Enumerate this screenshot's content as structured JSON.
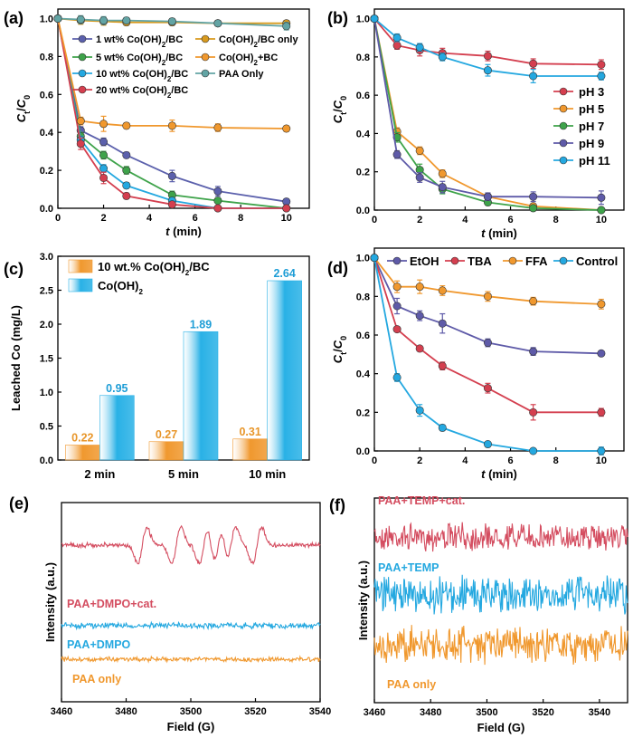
{
  "colors": {
    "blue_purple": "#5b60ac",
    "green": "#3ea34a",
    "cyan": "#24a8e0",
    "red": "#d43f4f",
    "orange": "#f0982e",
    "yellow_orange": "#f2a52e",
    "teal": "#62a4a4",
    "purple": "#5e5aa8",
    "light_blue": "#29b1e6",
    "pink_red": "#d44d60"
  },
  "chart_data": [
    {
      "id": "a",
      "panel_label": "(a)",
      "type": "line",
      "xlabel": "t (min)",
      "ylabel": "Ct/C0",
      "xlim": [
        0,
        11
      ],
      "ylim": [
        0,
        1.05
      ],
      "xticks": [
        0,
        2,
        4,
        6,
        8,
        10
      ],
      "yticks": [
        0.0,
        0.2,
        0.4,
        0.6,
        0.8,
        1.0
      ],
      "series": [
        {
          "name": "1 wt% Co(OH)2/BC",
          "label_main": "1 wt% Co(OH)",
          "label_sub": "2",
          "label_end": "/BC",
          "color": "#5b60ac",
          "x": [
            0,
            1,
            2,
            3,
            5,
            7,
            10
          ],
          "y": [
            1.0,
            0.41,
            0.35,
            0.28,
            0.17,
            0.09,
            0.035
          ],
          "err": [
            0,
            0.02,
            0.02,
            0.015,
            0.03,
            0.025,
            0.015
          ]
        },
        {
          "name": "5 wt% Co(OH)2/BC",
          "label_main": "5 wt% Co(OH)",
          "label_sub": "2",
          "label_end": "/BC",
          "color": "#3ea34a",
          "x": [
            0,
            1,
            2,
            3,
            5,
            7,
            10
          ],
          "y": [
            1.0,
            0.38,
            0.28,
            0.2,
            0.07,
            0.04,
            0.0
          ],
          "err": [
            0,
            0.02,
            0.02,
            0.02,
            0.02,
            0.015,
            0.01
          ]
        },
        {
          "name": "10 wt% Co(OH)2/BC",
          "label_main": "10 wt% Co(OH)",
          "label_sub": "2",
          "label_end": "/BC",
          "color": "#24a8e0",
          "x": [
            0,
            1,
            2,
            3,
            5,
            7,
            10
          ],
          "y": [
            1.0,
            0.36,
            0.21,
            0.12,
            0.04,
            0.0,
            0.0
          ],
          "err": [
            0,
            0.02,
            0.02,
            0.015,
            0.015,
            0.01,
            0.005
          ]
        },
        {
          "name": "20 wt% Co(OH)2/BC",
          "label_main": "20 wt% Co(OH)",
          "label_sub": "2",
          "label_end": "/BC",
          "color": "#d43f4f",
          "x": [
            0,
            1,
            2,
            3,
            5,
            7,
            10
          ],
          "y": [
            1.0,
            0.34,
            0.16,
            0.065,
            0.02,
            0.0,
            0.0
          ],
          "err": [
            0,
            0.03,
            0.03,
            0.015,
            0.01,
            0.005,
            0.005
          ]
        },
        {
          "name": "Co(OH)2/BC only",
          "label_main": "Co(OH)",
          "label_sub": "2",
          "label_end": "/BC only",
          "color": "#d89a1e",
          "x": [
            0,
            1,
            2,
            3,
            5,
            7,
            10
          ],
          "y": [
            1.0,
            0.99,
            0.985,
            0.98,
            0.98,
            0.975,
            0.975
          ],
          "err": [
            0,
            0.02,
            0.02,
            0.015,
            0.015,
            0.015,
            0.015
          ]
        },
        {
          "name": "Co(OH)2+BC",
          "label_main": "Co(OH)",
          "label_sub": "2",
          "label_end": "+BC",
          "color": "#f0982e",
          "x": [
            0,
            1,
            2,
            3,
            5,
            7,
            10
          ],
          "y": [
            1.0,
            0.46,
            0.445,
            0.435,
            0.435,
            0.425,
            0.42
          ],
          "err": [
            0,
            0.02,
            0.04,
            0.015,
            0.03,
            0.02,
            0.015
          ]
        },
        {
          "name": "PAA Only",
          "label_main": "PAA Only",
          "label_sub": "",
          "label_end": "",
          "color": "#62a4a4",
          "x": [
            0,
            1,
            2,
            3,
            5,
            7,
            10
          ],
          "y": [
            1.0,
            0.995,
            0.99,
            0.99,
            0.985,
            0.975,
            0.96
          ],
          "err": [
            0,
            0.02,
            0.02,
            0.015,
            0.015,
            0.015,
            0.02
          ]
        }
      ]
    },
    {
      "id": "b",
      "panel_label": "(b)",
      "type": "line",
      "xlabel": "t (min)",
      "ylabel": "Ct/C0",
      "xlim": [
        0,
        11
      ],
      "ylim": [
        0,
        1.05
      ],
      "xticks": [
        0,
        2,
        4,
        6,
        8,
        10
      ],
      "yticks": [
        0.0,
        0.2,
        0.4,
        0.6,
        0.8,
        1.0
      ],
      "series": [
        {
          "name": "pH 3",
          "color": "#d43f4f",
          "x": [
            0,
            1,
            2,
            3,
            5,
            7,
            10
          ],
          "y": [
            1.0,
            0.86,
            0.835,
            0.82,
            0.805,
            0.765,
            0.76
          ],
          "err": [
            0,
            0.02,
            0.03,
            0.025,
            0.025,
            0.025,
            0.025
          ]
        },
        {
          "name": "pH 5",
          "color": "#f0982e",
          "x": [
            0,
            1,
            2,
            3,
            5,
            7,
            10
          ],
          "y": [
            1.0,
            0.41,
            0.31,
            0.19,
            0.07,
            0.02,
            0.0
          ],
          "err": [
            0,
            0.02,
            0.02,
            0.02,
            0.015,
            0.01,
            0.01
          ]
        },
        {
          "name": "pH 7",
          "color": "#3ea34a",
          "x": [
            0,
            1,
            2,
            3,
            5,
            7,
            10
          ],
          "y": [
            1.0,
            0.38,
            0.21,
            0.11,
            0.04,
            0.01,
            0.0
          ],
          "err": [
            0,
            0.025,
            0.03,
            0.025,
            0.01,
            0.01,
            0.005
          ]
        },
        {
          "name": "pH 9",
          "color": "#5e5aa8",
          "x": [
            0,
            1,
            2,
            3,
            5,
            7,
            10
          ],
          "y": [
            1.0,
            0.29,
            0.17,
            0.12,
            0.07,
            0.07,
            0.065
          ],
          "err": [
            0,
            0.02,
            0.025,
            0.03,
            0.02,
            0.025,
            0.035
          ]
        },
        {
          "name": "pH 11",
          "color": "#24a8e0",
          "x": [
            0,
            1,
            2,
            3,
            5,
            7,
            10
          ],
          "y": [
            1.0,
            0.9,
            0.85,
            0.8,
            0.73,
            0.7,
            0.7
          ],
          "err": [
            0,
            0.02,
            0.02,
            0.02,
            0.03,
            0.035,
            0.02
          ]
        }
      ]
    },
    {
      "id": "c",
      "panel_label": "(c)",
      "type": "bar",
      "ylabel": "Leached Co (mg/L)",
      "ylim": [
        0,
        3.0
      ],
      "yticks": [
        0.0,
        0.5,
        1.0,
        1.5,
        2.0,
        2.5,
        3.0
      ],
      "categories": [
        "2 min",
        "5 min",
        "10 min"
      ],
      "series": [
        {
          "name": "10 wt.% Co(OH)2/BC",
          "label_main": "10 wt.% Co(OH)",
          "label_sub": "2",
          "label_end": "/BC",
          "color": "#f0982e",
          "values": [
            0.22,
            0.27,
            0.31
          ],
          "value_labels": [
            "0.22",
            "0.27",
            "0.31"
          ]
        },
        {
          "name": "Co(OH)2",
          "label_main": "Co(OH)",
          "label_sub": "2",
          "label_end": "",
          "color": "#29b1e6",
          "values": [
            0.95,
            1.89,
            2.64
          ],
          "value_labels": [
            "0.95",
            "1.89",
            "2.64"
          ]
        }
      ]
    },
    {
      "id": "d",
      "panel_label": "(d)",
      "type": "line",
      "xlabel": "t (min)",
      "ylabel": "Ct/C0",
      "xlim": [
        0,
        11
      ],
      "ylim": [
        0,
        1.05
      ],
      "xticks": [
        0,
        2,
        4,
        6,
        8,
        10
      ],
      "yticks": [
        0.0,
        0.2,
        0.4,
        0.6,
        0.8,
        1.0
      ],
      "series": [
        {
          "name": "EtOH",
          "color": "#5e5aa8",
          "x": [
            0,
            1,
            2,
            3,
            5,
            7,
            10
          ],
          "y": [
            1.0,
            0.75,
            0.7,
            0.66,
            0.56,
            0.515,
            0.505
          ],
          "err": [
            0,
            0.04,
            0.025,
            0.05,
            0.02,
            0.02,
            0.01
          ]
        },
        {
          "name": "TBA",
          "color": "#d43f4f",
          "x": [
            0,
            1,
            2,
            3,
            5,
            7,
            10
          ],
          "y": [
            1.0,
            0.63,
            0.53,
            0.44,
            0.325,
            0.2,
            0.2
          ],
          "err": [
            0,
            0.01,
            0.01,
            0.02,
            0.025,
            0.04,
            0.02
          ]
        },
        {
          "name": "FFA",
          "color": "#f0982e",
          "x": [
            0,
            1,
            2,
            3,
            5,
            7,
            10
          ],
          "y": [
            1.0,
            0.85,
            0.85,
            0.83,
            0.8,
            0.775,
            0.76
          ],
          "err": [
            0,
            0.03,
            0.035,
            0.025,
            0.025,
            0.02,
            0.025
          ]
        },
        {
          "name": "Control",
          "color": "#24a8e0",
          "x": [
            0,
            1,
            2,
            3,
            5,
            7,
            10
          ],
          "y": [
            1.0,
            0.38,
            0.21,
            0.12,
            0.035,
            0.0,
            0.0
          ],
          "err": [
            0,
            0.02,
            0.03,
            0.015,
            0.01,
            0.005,
            0.02
          ]
        }
      ]
    },
    {
      "id": "e",
      "panel_label": "(e)",
      "type": "line",
      "xlabel": "Field (G)",
      "ylabel": "Intensity (a.u.)",
      "xlim": [
        3460,
        3540
      ],
      "xticks": [
        3460,
        3480,
        3500,
        3520,
        3540
      ],
      "series": [
        {
          "name": "PAA+DMPO+cat.",
          "color": "#d44d60",
          "peaks": [
            3485,
            3495.5,
            3504,
            3508.5,
            3512.5,
            3520.5
          ]
        },
        {
          "name": "PAA+DMPO",
          "color": "#24a8e0",
          "peaks": []
        },
        {
          "name": "PAA only",
          "color": "#f0982e",
          "peaks": []
        }
      ]
    },
    {
      "id": "f",
      "panel_label": "(f)",
      "type": "line",
      "xlabel": "Field (G)",
      "ylabel": "Intensity (a.u.)",
      "xlim": [
        3460,
        3550
      ],
      "xticks": [
        3460,
        3480,
        3500,
        3520,
        3540
      ],
      "series": [
        {
          "name": "PAA+TEMP+cat.",
          "color": "#d44d60"
        },
        {
          "name": "PAA+TEMP",
          "color": "#24a8e0"
        },
        {
          "name": "PAA only",
          "color": "#f0982e"
        }
      ]
    }
  ]
}
